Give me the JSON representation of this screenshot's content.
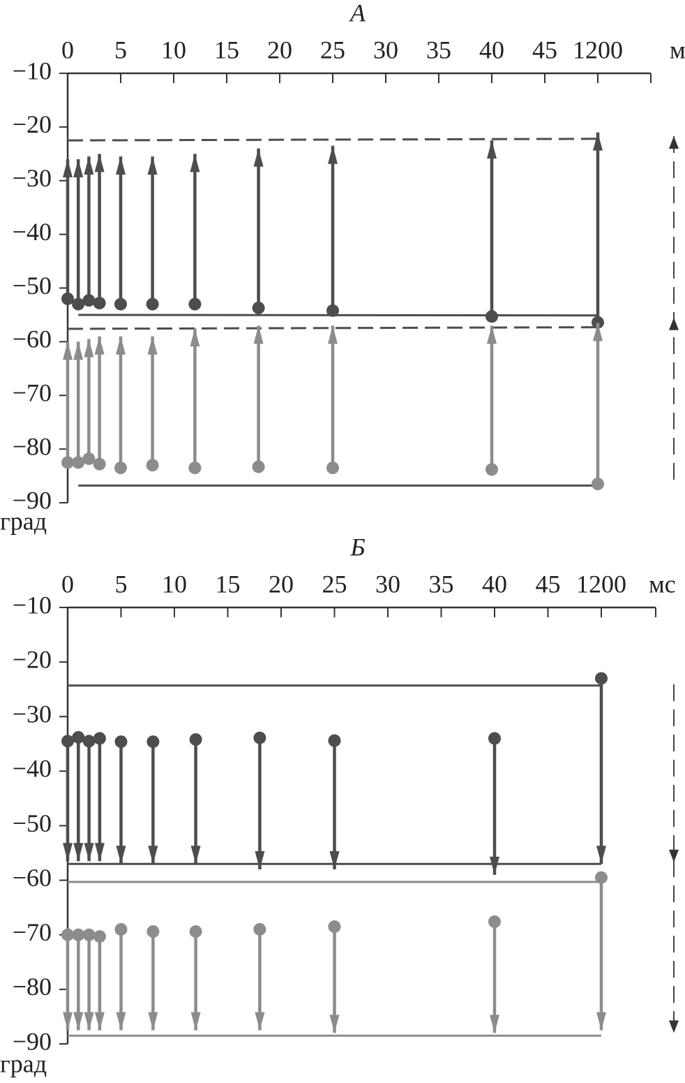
{
  "chart_data": [
    {
      "type": "arrow",
      "title": "A",
      "x_label": "мс",
      "y_label": "град",
      "x": [
        0,
        1,
        2,
        3,
        5,
        8,
        12,
        18,
        25,
        40,
        1200
      ],
      "xlim": [
        0,
        1200
      ],
      "xticks": [
        0,
        5,
        10,
        15,
        20,
        25,
        30,
        35,
        40,
        45,
        1200
      ],
      "ylim": [
        -90,
        -10
      ],
      "yticks": [
        {
          "value": -10,
          "label": "−10"
        },
        {
          "value": -20,
          "label": "−20"
        },
        {
          "value": -30,
          "label": "−30"
        },
        {
          "value": -40,
          "label": "−40"
        },
        {
          "value": -50,
          "label": "−50"
        },
        {
          "value": -60,
          "label": "−60"
        },
        {
          "value": -70,
          "label": "−70"
        },
        {
          "value": -80,
          "label": "−80"
        },
        {
          "value": -90,
          "label": "−90"
        }
      ],
      "series": [
        {
          "color": "#4d4d4d",
          "values": [
            -52,
            -53,
            -52.3,
            -52.8,
            -53,
            -53,
            -53,
            -53.7,
            -54.2,
            -55.3,
            -56.4
          ],
          "ends": [
            -26,
            -26,
            -25.5,
            -25,
            -25.5,
            -25.5,
            -25,
            -24,
            -23.5,
            -22.5,
            -21
          ]
        },
        {
          "color": "#8c8c8c",
          "values": [
            -82.5,
            -82.5,
            -81.8,
            -82.8,
            -83.5,
            -83,
            -83.5,
            -83.3,
            -83.5,
            -83.8,
            -86.5
          ],
          "ends": [
            -60,
            -60,
            -59.5,
            -59,
            -59,
            -59,
            -57.5,
            -57,
            -57,
            -57,
            -56.5
          ]
        }
      ],
      "lines": [
        {
          "x": [
            1,
            1200
          ],
          "y": [
            -55,
            -55.1
          ],
          "style": "solid",
          "color": "#4d4d4d"
        },
        {
          "x": [
            1,
            1200
          ],
          "y": [
            -86.8,
            -86.8
          ],
          "style": "solid",
          "color": "#4d4d4d"
        },
        {
          "x": [
            0,
            1200
          ],
          "y": [
            -22.5,
            -22.2
          ],
          "style": "dashed",
          "color": "#4d4d4d"
        },
        {
          "x": [
            0,
            1200
          ],
          "y": [
            -57.6,
            -57.3
          ],
          "style": "dashed",
          "color": "#4d4d4d"
        }
      ],
      "range_marker": {
        "values": [
          -21.7,
          -55.5,
          -86.7
        ],
        "heads": [
          true,
          true,
          false
        ],
        "direction": "up"
      }
    },
    {
      "type": "arrow",
      "title": "Б",
      "x_label": "мс",
      "y_label": "град",
      "x": [
        0,
        1,
        2,
        3,
        5,
        8,
        12,
        18,
        25,
        40,
        1200
      ],
      "xlim": [
        0,
        1200
      ],
      "xticks": [
        0,
        5,
        10,
        15,
        20,
        25,
        30,
        35,
        40,
        45,
        1200
      ],
      "ylim": [
        -90,
        -10
      ],
      "yticks": [
        {
          "value": -10,
          "label": "−10"
        },
        {
          "value": -20,
          "label": "−20"
        },
        {
          "value": -30,
          "label": "−30"
        },
        {
          "value": -40,
          "label": "−40"
        },
        {
          "value": -50,
          "label": "−50"
        },
        {
          "value": -60,
          "label": "−60"
        },
        {
          "value": -70,
          "label": "−70"
        },
        {
          "value": -80,
          "label": "−80"
        },
        {
          "value": -90,
          "label": "−90"
        }
      ],
      "series": [
        {
          "color": "#4d4d4d",
          "values": [
            -34.5,
            -33.8,
            -34.5,
            -34,
            -34.6,
            -34.6,
            -34.2,
            -33.9,
            -34.4,
            -34,
            -23
          ],
          "ends": [
            -56.5,
            -56.5,
            -56.5,
            -56.5,
            -57,
            -57,
            -57,
            -58,
            -58,
            -59,
            -57
          ]
        },
        {
          "color": "#8c8c8c",
          "values": [
            -70,
            -70,
            -70,
            -70.3,
            -69,
            -69.4,
            -69.4,
            -69,
            -68.5,
            -67.6,
            -59.5
          ],
          "ends": [
            -87.5,
            -87.5,
            -87.5,
            -87.5,
            -87.5,
            -87.5,
            -87.5,
            -87.5,
            -88,
            -88,
            -87.5
          ]
        }
      ],
      "lines": [
        {
          "x": [
            0,
            1200
          ],
          "y": [
            -24.3,
            -24.3
          ],
          "style": "solid",
          "color": "#4d4d4d"
        },
        {
          "x": [
            0,
            1200
          ],
          "y": [
            -57,
            -57
          ],
          "style": "solid",
          "color": "#4d4d4d"
        },
        {
          "x": [
            0,
            1200
          ],
          "y": [
            -60.3,
            -60.3
          ],
          "style": "solid",
          "color": "#8c8c8c"
        },
        {
          "x": [
            0,
            1200
          ],
          "y": [
            -88.5,
            -88.5
          ],
          "style": "solid",
          "color": "#8c8c8c"
        }
      ],
      "range_marker": {
        "values": [
          -24.1,
          -56.7,
          -88
        ],
        "heads": [
          false,
          true,
          true
        ],
        "direction": "down"
      }
    }
  ]
}
